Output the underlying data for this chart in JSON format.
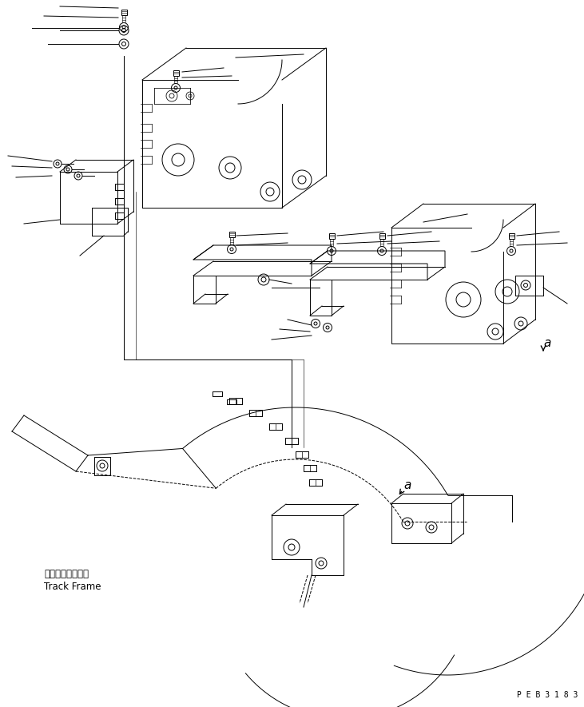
{
  "background_color": "#ffffff",
  "figure_width": 7.31,
  "figure_height": 8.85,
  "dpi": 100,
  "bottom_right_text": "P E B 3 1 8 3",
  "track_frame_label_jp": "トラックフレーム",
  "track_frame_label_en": "Track Frame",
  "line_color": "#000000"
}
